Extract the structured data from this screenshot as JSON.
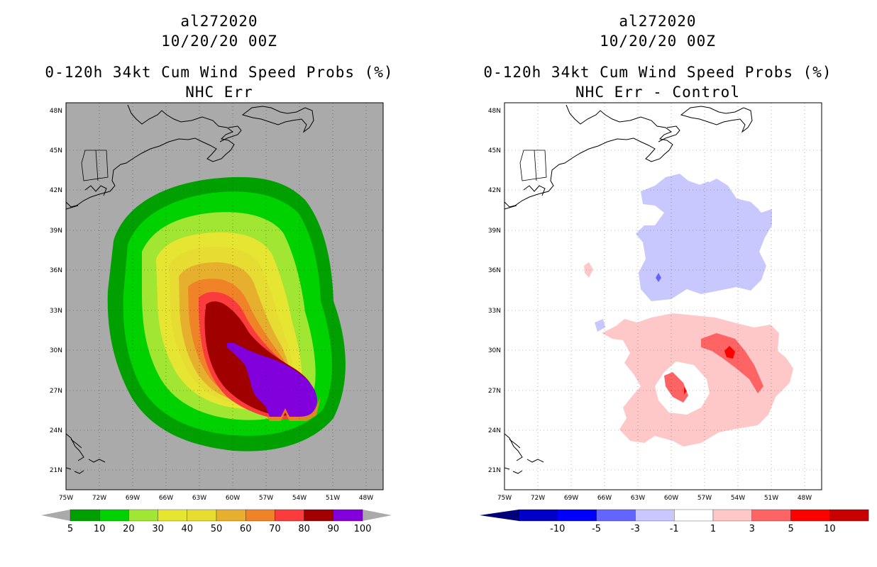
{
  "left": {
    "storm_id": "al272020",
    "datetime": "10/20/20 00Z",
    "product": "0-120h 34kt Cum Wind Speed Probs (%)",
    "subtitle": "NHC Err",
    "colorbar": {
      "colors": [
        "#00a000",
        "#00d200",
        "#a0e632",
        "#e6e632",
        "#e6dc32",
        "#e6af2d",
        "#f08228",
        "#fa3c3c",
        "#a00000",
        "#8200dc"
      ],
      "labels": [
        "5",
        "10",
        "20",
        "30",
        "40",
        "50",
        "60",
        "70",
        "80",
        "90",
        "100"
      ]
    }
  },
  "right": {
    "storm_id": "al272020",
    "datetime": "10/20/20 00Z",
    "product": "0-120h 34kt Cum Wind Speed Probs (%)",
    "subtitle": "NHC Err - Control",
    "colorbar": {
      "colors": [
        "#0000c8",
        "#0000ff",
        "#6464ff",
        "#c8c8ff",
        "#ffffff",
        "#ffc8c8",
        "#ff6464",
        "#ff0000",
        "#c80000"
      ],
      "labels": [
        "-10",
        "-5",
        "-3",
        "-1",
        "1",
        "3",
        "5",
        "10"
      ]
    }
  },
  "axes": {
    "lat_labels": [
      "48N",
      "45N",
      "42N",
      "39N",
      "36N",
      "33N",
      "30N",
      "27N",
      "24N",
      "21N"
    ],
    "lon_labels": [
      "75W",
      "72W",
      "69W",
      "66W",
      "63W",
      "60W",
      "57W",
      "54W",
      "51W",
      "48W"
    ]
  }
}
